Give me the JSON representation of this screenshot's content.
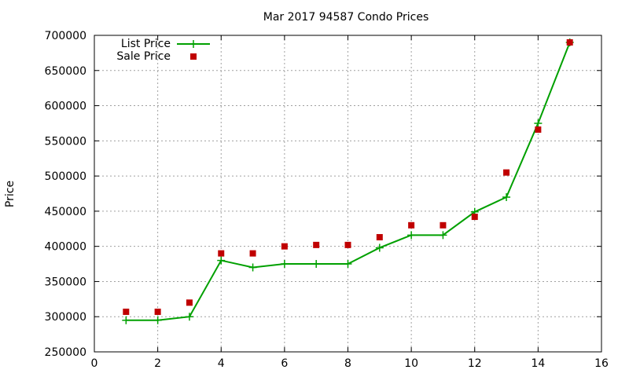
{
  "chart_data": {
    "type": "line",
    "title": "Mar 2017 94587 Condo Prices",
    "xlabel": "",
    "ylabel": "Price",
    "xlim": [
      0,
      16
    ],
    "ylim": [
      250000,
      700000
    ],
    "x_ticks": [
      0,
      2,
      4,
      6,
      8,
      10,
      12,
      14,
      16
    ],
    "y_ticks": [
      250000,
      300000,
      350000,
      400000,
      450000,
      500000,
      550000,
      600000,
      650000,
      700000
    ],
    "grid": true,
    "legend_position": "top-left",
    "series": [
      {
        "name": "List Price",
        "style": "line-points",
        "color": "#00a000",
        "x": [
          1,
          2,
          3,
          4,
          5,
          6,
          7,
          8,
          9,
          10,
          11,
          12,
          13,
          14,
          15
        ],
        "y": [
          295000,
          295000,
          300000,
          380000,
          370000,
          375000,
          375000,
          375000,
          398000,
          416000,
          416000,
          449000,
          470000,
          575000,
          690000
        ]
      },
      {
        "name": "Sale Price",
        "style": "points",
        "color": "#c00000",
        "x": [
          1,
          2,
          3,
          4,
          5,
          6,
          7,
          8,
          9,
          10,
          11,
          12,
          13,
          14,
          15
        ],
        "y": [
          307000,
          307000,
          320000,
          390000,
          390000,
          400000,
          402000,
          402000,
          413000,
          430000,
          430000,
          442000,
          505000,
          566000,
          690000
        ]
      }
    ]
  }
}
